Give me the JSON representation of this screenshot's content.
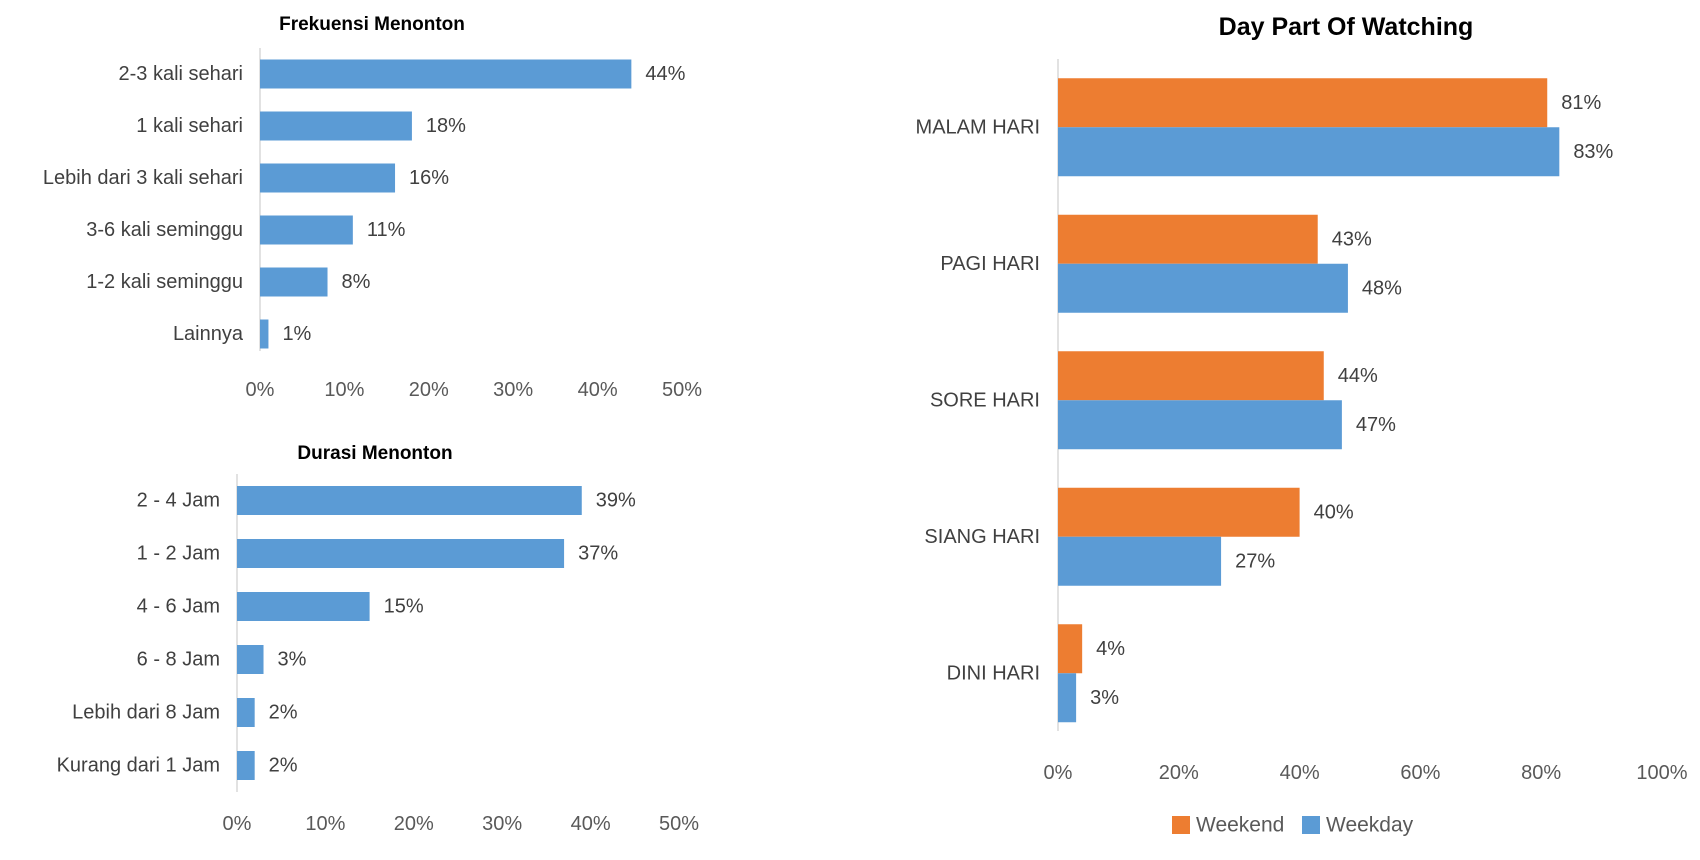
{
  "chart_data": [
    {
      "type": "bar",
      "orientation": "horizontal",
      "title": "Frekuensi Menonton",
      "categories": [
        "2-3 kali sehari",
        "1 kali sehari",
        "Lebih dari 3 kali sehari",
        "3-6 kali seminggu",
        "1-2 kali seminggu",
        "Lainnya"
      ],
      "values": [
        44,
        18,
        16,
        11,
        8,
        1
      ],
      "value_labels": [
        "44%",
        "18%",
        "16%",
        "11%",
        "8%",
        "1%"
      ],
      "xlim": [
        0,
        50
      ],
      "xticks": [
        0,
        10,
        20,
        30,
        40,
        50
      ],
      "xtick_labels": [
        "0%",
        "10%",
        "20%",
        "30%",
        "40%",
        "50%"
      ],
      "grid": false,
      "colors": {
        "bar": "#5B9BD5"
      }
    },
    {
      "type": "bar",
      "orientation": "horizontal",
      "title": "Durasi Menonton",
      "categories": [
        "2 - 4 Jam",
        "1 - 2 Jam",
        "4 - 6 Jam",
        "6 - 8 Jam",
        "Lebih dari 8 Jam",
        "Kurang dari 1 Jam"
      ],
      "values": [
        39,
        37,
        15,
        3,
        2,
        2
      ],
      "value_labels": [
        "39%",
        "37%",
        "15%",
        "3%",
        "2%",
        "2%"
      ],
      "xlim": [
        0,
        50
      ],
      "xticks": [
        0,
        10,
        20,
        30,
        40,
        50
      ],
      "xtick_labels": [
        "0%",
        "10%",
        "20%",
        "30%",
        "40%",
        "50%"
      ],
      "grid": false,
      "colors": {
        "bar": "#5B9BD5"
      }
    },
    {
      "type": "bar",
      "orientation": "horizontal",
      "title": "Day Part Of Watching",
      "categories": [
        "MALAM HARI",
        "PAGI HARI",
        "SORE HARI",
        "SIANG HARI",
        "DINI HARI"
      ],
      "series": [
        {
          "name": "Weekend",
          "values": [
            81,
            43,
            44,
            40,
            4
          ],
          "value_labels": [
            "81%",
            "43%",
            "44%",
            "40%",
            "4%"
          ],
          "color": "#ED7D31"
        },
        {
          "name": "Weekday",
          "values": [
            83,
            48,
            47,
            27,
            3
          ],
          "value_labels": [
            "83%",
            "48%",
            "47%",
            "27%",
            "3%"
          ],
          "color": "#5B9BD5"
        }
      ],
      "xlim": [
        0,
        100
      ],
      "xticks": [
        0,
        20,
        40,
        60,
        80,
        100
      ],
      "xtick_labels": [
        "0%",
        "20%",
        "40%",
        "60%",
        "80%",
        "100%"
      ],
      "grid": false,
      "legend": "bottom"
    }
  ]
}
